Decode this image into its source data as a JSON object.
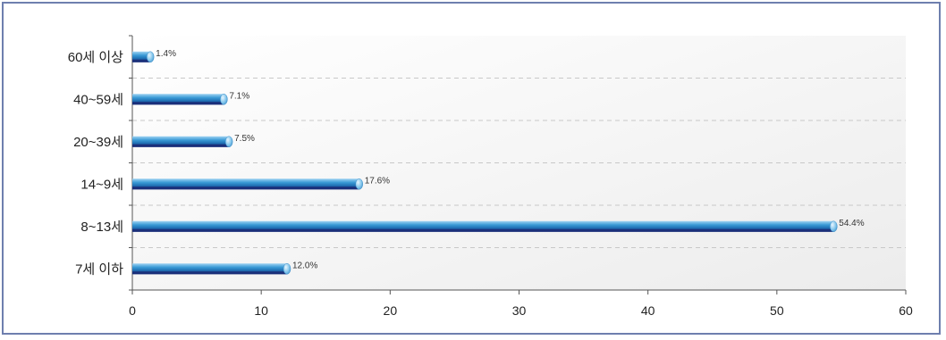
{
  "chart_data": {
    "type": "bar",
    "orientation": "horizontal",
    "categories": [
      "60세 이상",
      "40~59세",
      "20~39세",
      "14~9세",
      "8~13세",
      "7세 이하"
    ],
    "values": [
      1.4,
      7.1,
      7.5,
      17.6,
      54.4,
      12.0
    ],
    "data_labels": [
      "1.4%",
      "7.1%",
      "7.5%",
      "17.6%",
      "54.4%",
      "12.0%"
    ],
    "x_ticks": [
      "0",
      "10",
      "20",
      "30",
      "40",
      "50",
      "60"
    ],
    "xlim": [
      0,
      60
    ],
    "title": "",
    "xlabel": "",
    "ylabel": "",
    "grid": "horizontal dashed",
    "bar_color": "#1f7fc0",
    "bar_dark": "#1a2f7a",
    "plot_background": "#f5f5f5"
  }
}
